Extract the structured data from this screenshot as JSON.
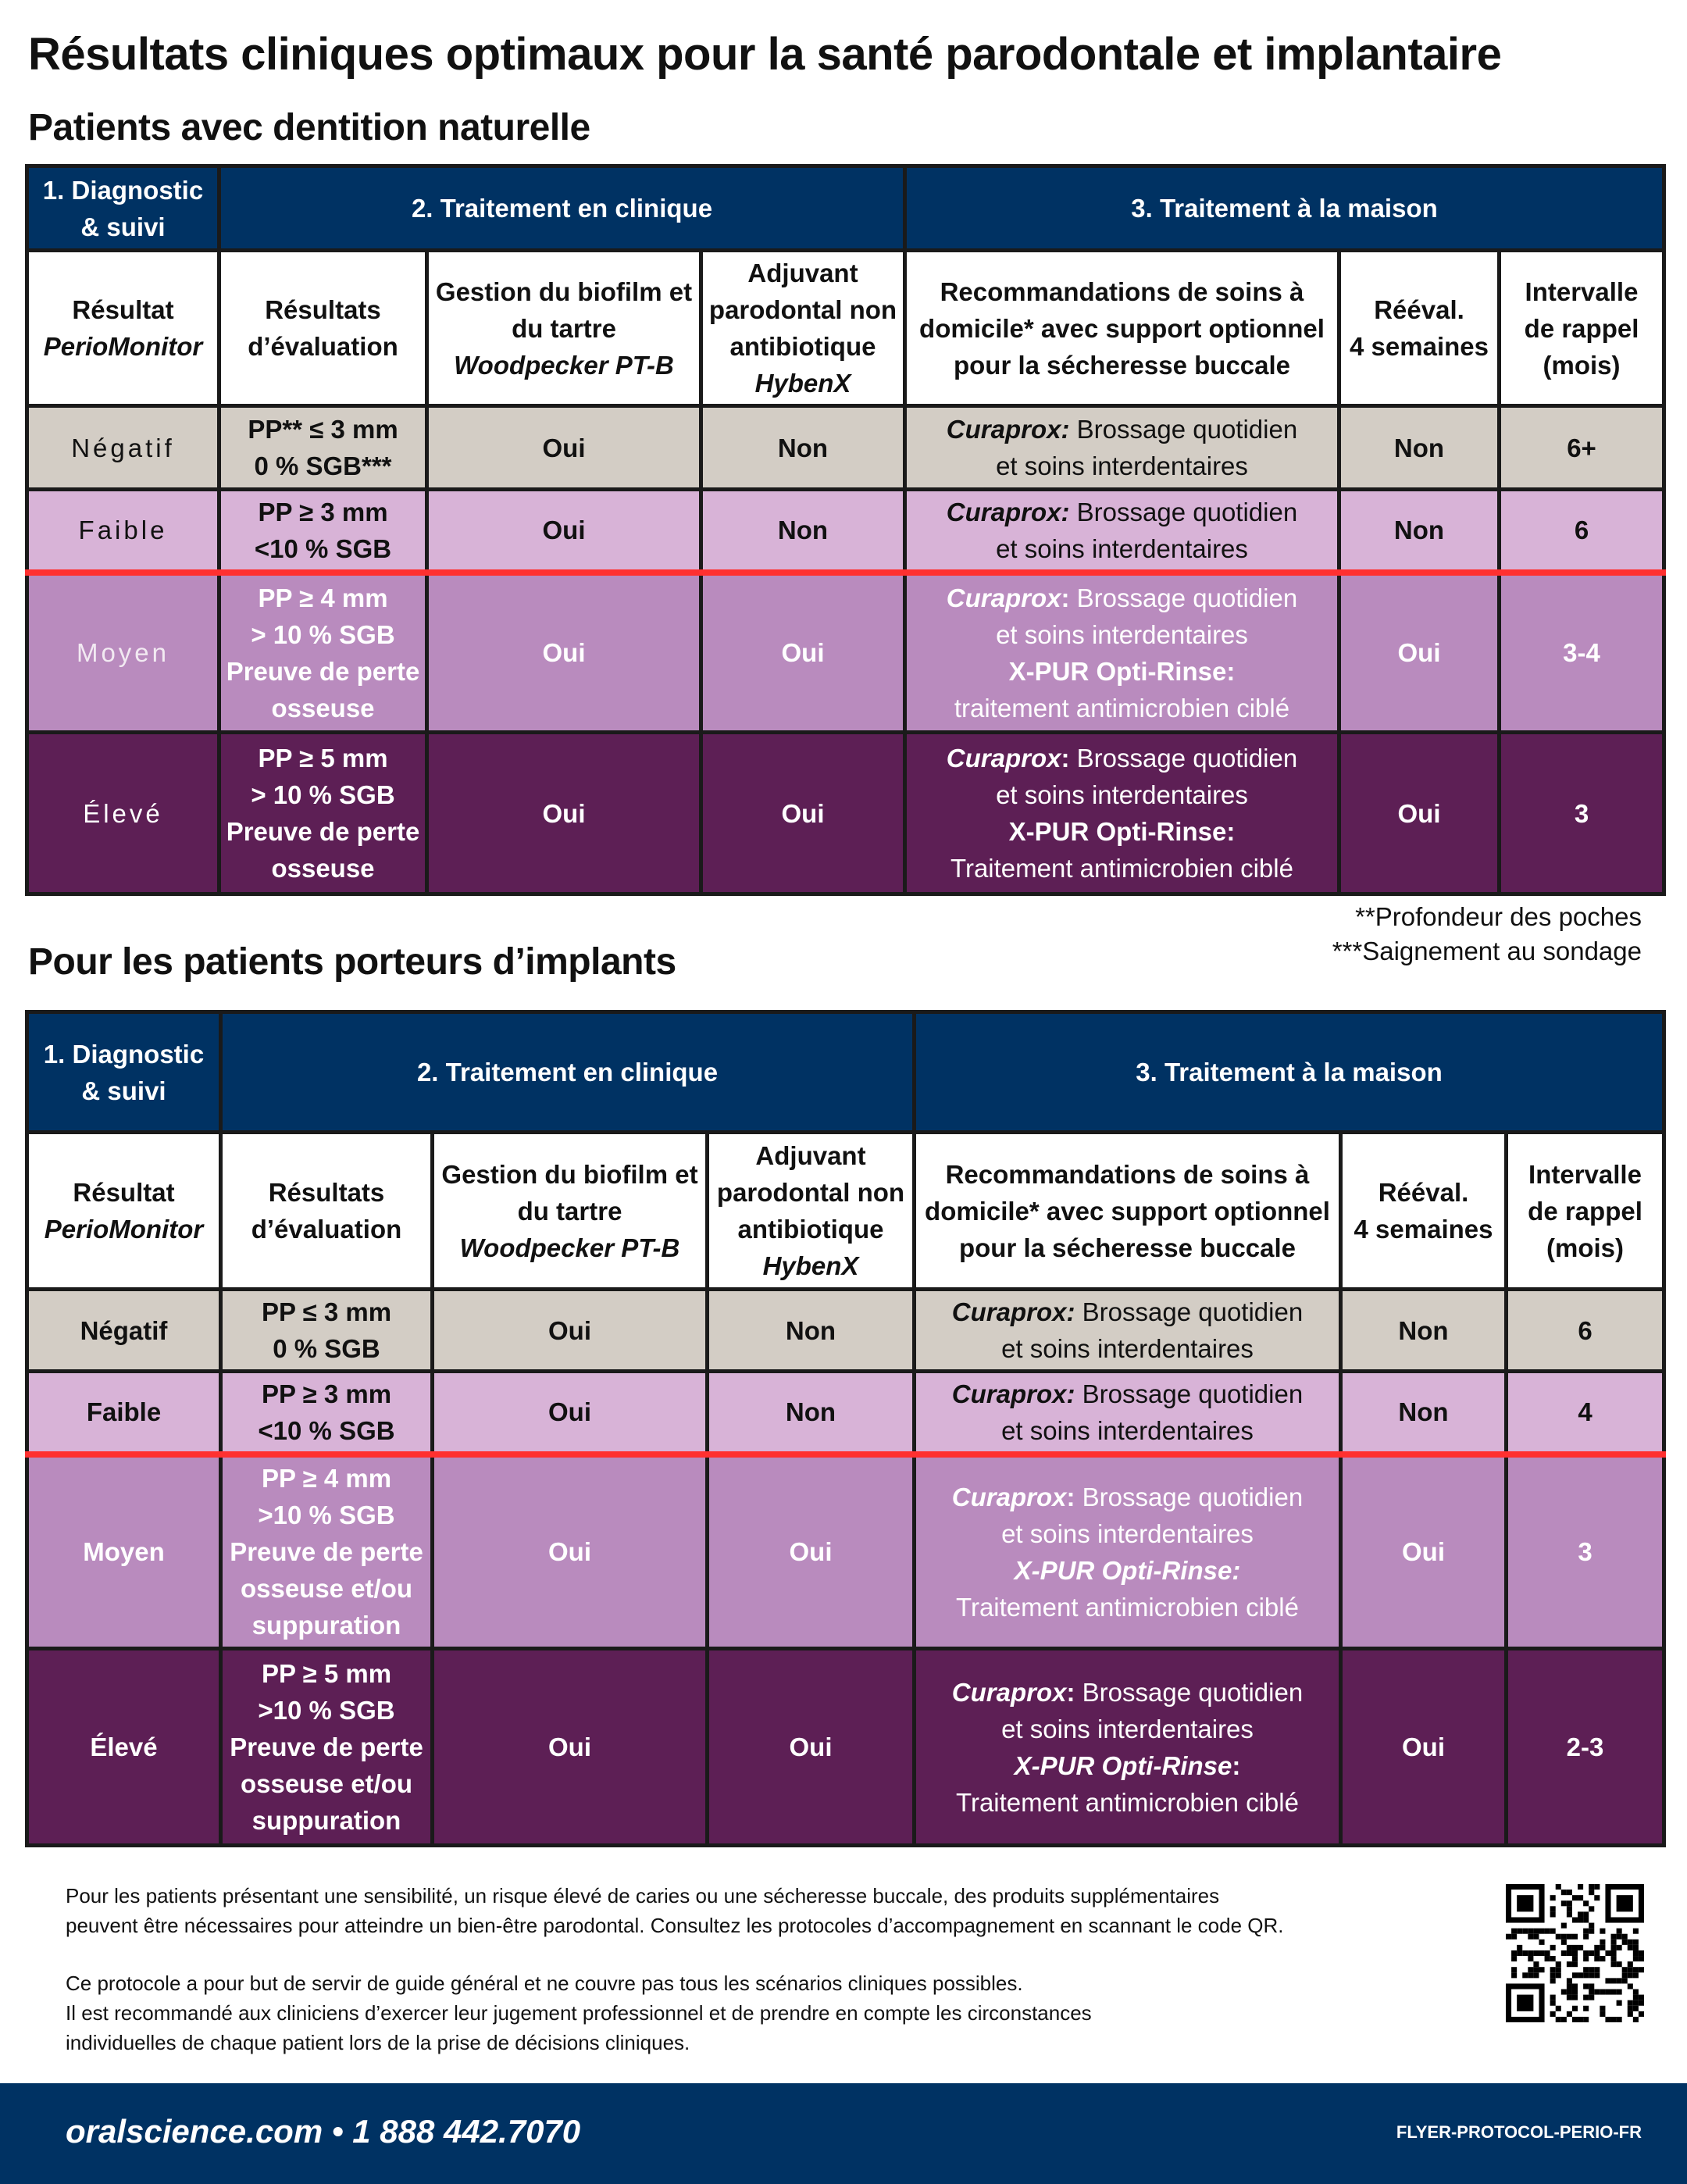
{
  "title": "Résultats cliniques optimaux pour la santé parodontale et implantaire",
  "colors": {
    "navy": "#003263",
    "negatif": "#d3cdc5",
    "faible": "#d8b3d7",
    "moyen": "#b98bbe",
    "eleve": "#5d1f55",
    "threshold_line": "#ff3030"
  },
  "tables": [
    {
      "heading": "Patients avec dentition naturelle",
      "label_style": "light",
      "groups": [
        [
          [
            {
              "t": "1. Diagnostic"
            }
          ],
          [
            {
              "t": "& suivi"
            }
          ]
        ],
        [
          [
            {
              "t": "2. Traitement en clinique"
            }
          ]
        ],
        [
          [
            {
              "t": "3. Traitement à la maison"
            }
          ]
        ]
      ],
      "columns": [
        [
          [
            {
              "t": "Résultat"
            }
          ],
          [
            {
              "t": "PerioMonitor",
              "i": true
            }
          ]
        ],
        [
          [
            {
              "t": "Résultats"
            }
          ],
          [
            {
              "t": "d’évaluation"
            }
          ]
        ],
        [
          [
            {
              "t": "Gestion du biofilm et"
            }
          ],
          [
            {
              "t": "du tartre"
            }
          ],
          [
            {
              "t": "Woodpecker PT-B",
              "i": true
            }
          ]
        ],
        [
          [
            {
              "t": "Adjuvant"
            }
          ],
          [
            {
              "t": "parodontal non"
            }
          ],
          [
            {
              "t": "antibiotique"
            }
          ],
          [
            {
              "t": "HybenX",
              "i": true
            }
          ]
        ],
        [
          [
            {
              "t": "Recommandations de soins à"
            }
          ],
          [
            {
              "t": "domicile* avec support optionnel"
            }
          ],
          [
            {
              "t": "pour la sécheresse buccale"
            }
          ]
        ],
        [
          [
            {
              "t": "Rééval."
            }
          ],
          [
            {
              "t": "4 semaines"
            }
          ]
        ],
        [
          [
            {
              "t": "Intervalle"
            }
          ],
          [
            {
              "t": "de rappel"
            }
          ],
          [
            {
              "t": "(mois)"
            }
          ]
        ]
      ],
      "rows": [
        {
          "level": "neg",
          "result": "Négatif",
          "assessment": [
            "PP** ≤ 3 mm",
            "0 % SGB***"
          ],
          "biofilm": "Oui",
          "adjuvant": "Non",
          "home": [
            [
              {
                "t": "Curaprox:",
                "b": true,
                "i": true
              },
              {
                "t": " Brossage quotidien"
              }
            ],
            [
              {
                "t": "et soins interdentaires"
              }
            ]
          ],
          "reeval": "Non",
          "recall": "6+"
        },
        {
          "level": "low",
          "result": "Faible",
          "assessment": [
            "PP ≥ 3 mm",
            "<10 % SGB"
          ],
          "biofilm": "Oui",
          "adjuvant": "Non",
          "home": [
            [
              {
                "t": "Curaprox:",
                "b": true,
                "i": true
              },
              {
                "t": " Brossage quotidien"
              }
            ],
            [
              {
                "t": "et soins interdentaires"
              }
            ]
          ],
          "reeval": "Non",
          "recall": "6"
        },
        {
          "level": "mid",
          "result": "Moyen",
          "assessment": [
            "PP ≥ 4 mm",
            "> 10 % SGB",
            "Preuve de perte",
            "osseuse"
          ],
          "biofilm": "Oui",
          "adjuvant": "Oui",
          "home": [
            [
              {
                "t": "Curaprox",
                "b": true,
                "i": true
              },
              {
                "t": ":",
                "b": true
              },
              {
                "t": " Brossage quotidien"
              }
            ],
            [
              {
                "t": "et soins interdentaires"
              }
            ],
            [
              {
                "t": "X-PUR Opti-Rinse:",
                "b": true
              }
            ],
            [
              {
                "t": "traitement antimicrobien ciblé"
              }
            ]
          ],
          "reeval": "Oui",
          "recall": "3-4"
        },
        {
          "level": "high",
          "result": "Élevé",
          "assessment": [
            "PP ≥ 5 mm",
            "> 10 % SGB",
            "Preuve de perte",
            "osseuse"
          ],
          "biofilm": "Oui",
          "adjuvant": "Oui",
          "home": [
            [
              {
                "t": "Curaprox",
                "b": true,
                "i": true
              },
              {
                "t": ":",
                "b": true
              },
              {
                "t": " Brossage quotidien"
              }
            ],
            [
              {
                "t": "et soins interdentaires"
              }
            ],
            [
              {
                "t": "X-PUR Opti-Rinse:",
                "b": true
              }
            ],
            [
              {
                "t": "Traitement antimicrobien ciblé"
              }
            ]
          ],
          "reeval": "Oui",
          "recall": "3"
        }
      ]
    },
    {
      "heading": "Pour les patients porteurs d’implants",
      "label_style": "bold",
      "groups": [
        [
          [
            {
              "t": "1. Diagnostic"
            }
          ],
          [
            {
              "t": "& suivi"
            }
          ]
        ],
        [
          [
            {
              "t": "2. Traitement en clinique"
            }
          ]
        ],
        [
          [
            {
              "t": "3. Traitement à la maison"
            }
          ]
        ]
      ],
      "columns": [
        [
          [
            {
              "t": "Résultat"
            }
          ],
          [
            {
              "t": "PerioMonitor",
              "i": true
            }
          ]
        ],
        [
          [
            {
              "t": "Résultats"
            }
          ],
          [
            {
              "t": "d’évaluation"
            }
          ]
        ],
        [
          [
            {
              "t": "Gestion du biofilm et"
            }
          ],
          [
            {
              "t": "du tartre"
            }
          ],
          [
            {
              "t": "Woodpecker PT-B",
              "i": true
            }
          ]
        ],
        [
          [
            {
              "t": "Adjuvant"
            }
          ],
          [
            {
              "t": "parodontal non"
            }
          ],
          [
            {
              "t": "antibiotique"
            }
          ],
          [
            {
              "t": "HybenX",
              "i": true
            }
          ]
        ],
        [
          [
            {
              "t": "Recommandations de soins à"
            }
          ],
          [
            {
              "t": "domicile* avec support optionnel"
            }
          ],
          [
            {
              "t": "pour la sécheresse buccale"
            }
          ]
        ],
        [
          [
            {
              "t": "Rééval."
            }
          ],
          [
            {
              "t": "4 semaines"
            }
          ]
        ],
        [
          [
            {
              "t": "Intervalle"
            }
          ],
          [
            {
              "t": "de rappel"
            }
          ],
          [
            {
              "t": "(mois)"
            }
          ]
        ]
      ],
      "rows": [
        {
          "level": "neg",
          "result": "Négatif",
          "assessment": [
            "PP ≤ 3 mm",
            "0 % SGB"
          ],
          "biofilm": "Oui",
          "adjuvant": "Non",
          "home": [
            [
              {
                "t": "Curaprox:",
                "b": true,
                "i": true
              },
              {
                "t": " Brossage quotidien"
              }
            ],
            [
              {
                "t": "et soins interdentaires"
              }
            ]
          ],
          "reeval": "Non",
          "recall": "6"
        },
        {
          "level": "low",
          "result": "Faible",
          "assessment": [
            "PP ≥ 3 mm",
            "<10 % SGB"
          ],
          "biofilm": "Oui",
          "adjuvant": "Non",
          "home": [
            [
              {
                "t": "Curaprox:",
                "b": true,
                "i": true
              },
              {
                "t": " Brossage quotidien"
              }
            ],
            [
              {
                "t": "et soins interdentaires"
              }
            ]
          ],
          "reeval": "Non",
          "recall": "4"
        },
        {
          "level": "mid",
          "result": "Moyen",
          "assessment": [
            "PP ≥ 4 mm",
            ">10 % SGB",
            "Preuve de perte",
            "osseuse et/ou",
            "suppuration"
          ],
          "biofilm": "Oui",
          "adjuvant": "Oui",
          "home": [
            [
              {
                "t": "Curaprox",
                "b": true,
                "i": true
              },
              {
                "t": ":",
                "b": true
              },
              {
                "t": " Brossage quotidien"
              }
            ],
            [
              {
                "t": "et soins interdentaires"
              }
            ],
            [
              {
                "t": "X-PUR Opti-Rinse:",
                "b": true,
                "i": true
              }
            ],
            [
              {
                "t": "Traitement antimicrobien ciblé"
              }
            ]
          ],
          "reeval": "Oui",
          "recall": "3"
        },
        {
          "level": "high",
          "result": "Élevé",
          "assessment": [
            "PP ≥ 5 mm",
            ">10 % SGB",
            "Preuve de perte",
            "osseuse et/ou",
            "suppuration"
          ],
          "biofilm": "Oui",
          "adjuvant": "Oui",
          "home": [
            [
              {
                "t": "Curaprox",
                "b": true,
                "i": true
              },
              {
                "t": ":",
                "b": true
              },
              {
                "t": " Brossage quotidien"
              }
            ],
            [
              {
                "t": "et soins interdentaires"
              }
            ],
            [
              {
                "t": "X-PUR Opti-Rinse",
                "b": true,
                "i": true
              },
              {
                "t": ":",
                "b": true
              }
            ],
            [
              {
                "t": "Traitement antimicrobien ciblé"
              }
            ]
          ],
          "reeval": "Oui",
          "recall": "2-3"
        }
      ]
    }
  ],
  "footnotes": [
    "**Profondeur des poches",
    "***Saignement au sondage"
  ],
  "footer_paragraphs": [
    [
      "Pour les patients présentant une sensibilité, un risque élevé de caries ou une sécheresse buccale, des produits supplémentaires",
      "peuvent être nécessaires pour atteindre un bien-être parodontal. Consultez les protocoles d’accompagnement en scannant le code QR."
    ],
    [
      "Ce protocole a pour but de servir de guide général et ne couvre pas tous les scénarios cliniques possibles.",
      "Il est recommandé aux cliniciens d’exercer leur jugement professionnel et de prendre en compte les circonstances",
      "individuelles de chaque patient lors de la prise de décisions cliniques."
    ]
  ],
  "qr_icon": "qr-code",
  "bottom_bar": {
    "contact": "oralscience.com • 1 888 442.7070",
    "code": "FLYER-PROTOCOL-PERIO-FR"
  }
}
